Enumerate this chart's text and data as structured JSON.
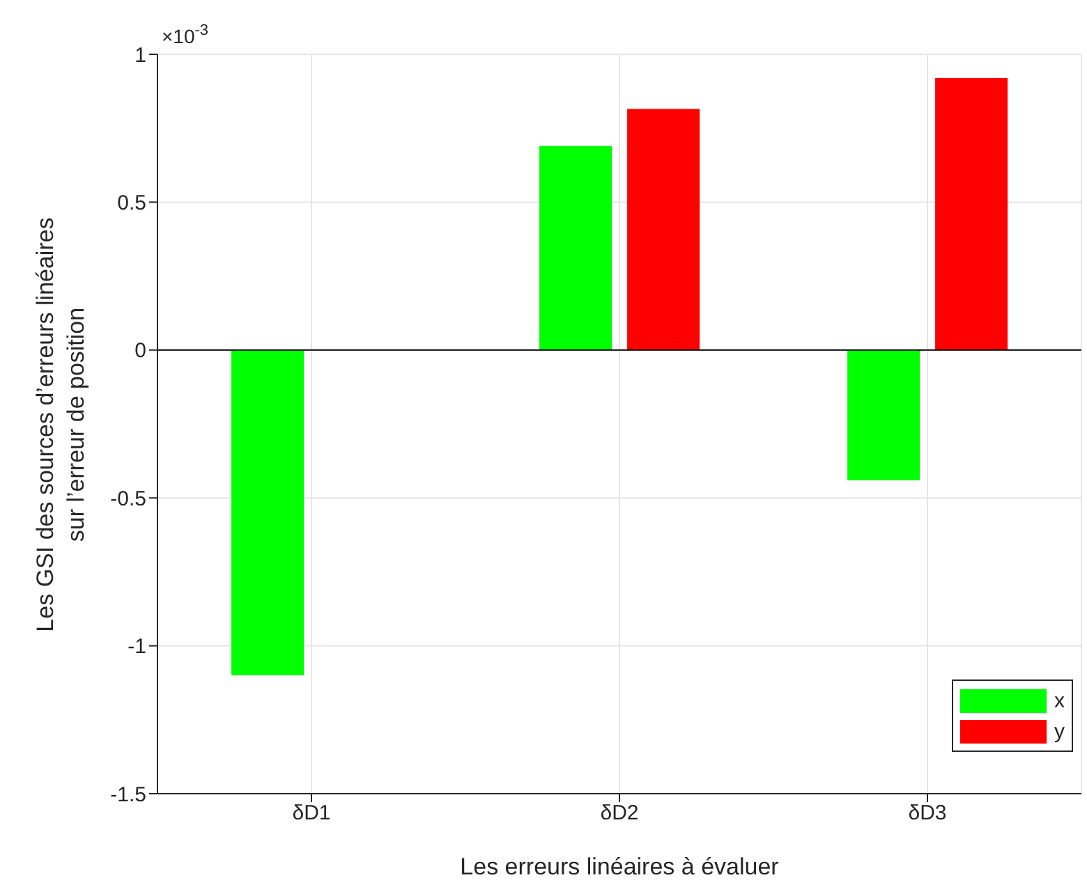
{
  "chart_data": {
    "type": "bar",
    "categories": [
      "δD1",
      "δD2",
      "δD3"
    ],
    "series": [
      {
        "name": "x",
        "color": "#00ff00",
        "values": [
          -1.1,
          0.69,
          -0.44
        ]
      },
      {
        "name": "y",
        "color": "#ff0000",
        "values": [
          0,
          0.815,
          0.92
        ]
      }
    ],
    "xlabel": "Les erreurs linéaires à évaluer",
    "ylabel": "Les GSI des sources d’erreurs linéaires\nsur l’erreur de position",
    "ylim": [
      -1.5,
      1
    ],
    "yticks": [
      -1.5,
      -1,
      -0.5,
      0,
      0.5,
      1
    ],
    "annotations": [
      "×10$^{-3}$"
    ],
    "grid": true,
    "legend": "bottom right"
  }
}
